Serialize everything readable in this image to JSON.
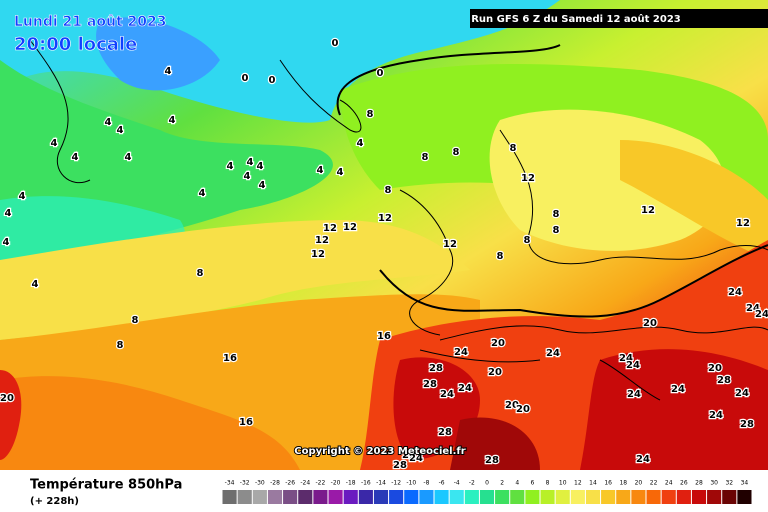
{
  "header": {
    "date": "Lundi 21 août 2023",
    "time": "20:00 locale",
    "run": "Run GFS 6 Z du Samedi 12 août 2023"
  },
  "copyright": "Copyright © 2023 Meteociel.fr",
  "footer": {
    "title": "Température 850hPa",
    "lead": "(+ 228h)"
  },
  "isotherm_labels": [
    0,
    4,
    0,
    0,
    0,
    8,
    4,
    4,
    4,
    4,
    4,
    4,
    4,
    8,
    8,
    8,
    4,
    4,
    4,
    4,
    4,
    4,
    4,
    4,
    4,
    4,
    8,
    12,
    12,
    12,
    12,
    12,
    12,
    12,
    8,
    8,
    8,
    8,
    12,
    12,
    4,
    4,
    8,
    8,
    8,
    16,
    16,
    20,
    16,
    24,
    20,
    20,
    24,
    20,
    24,
    24,
    24,
    24,
    24,
    20,
    28,
    24,
    24,
    24,
    28,
    28,
    24,
    24,
    20,
    20,
    24,
    28,
    28,
    28,
    28,
    24,
    24,
    28
  ],
  "scale": {
    "values": [
      -34,
      -32,
      -30,
      -28,
      -26,
      -24,
      -22,
      -20,
      -18,
      -16,
      -14,
      -12,
      -10,
      -8,
      -6,
      -4,
      -2,
      0,
      2,
      4,
      6,
      8,
      10,
      12,
      14,
      16,
      18,
      20,
      22,
      24,
      26,
      28,
      30,
      32,
      34
    ],
    "colors": [
      "#6e6e6e",
      "#8c8c8c",
      "#a8a8a8",
      "#9a7aa0",
      "#7a4e86",
      "#5c2c6c",
      "#7a1a8c",
      "#9a1aa8",
      "#6a1ac0",
      "#3a28a8",
      "#2a3ab8",
      "#1a4ae0",
      "#0a6aff",
      "#1a9aff",
      "#1ac8ff",
      "#3ae6f0",
      "#2af0c0",
      "#26e090",
      "#3ce060",
      "#60e040",
      "#90f020",
      "#b8f028",
      "#e0f040",
      "#f8f060",
      "#f8e048",
      "#f8c828",
      "#f8a818",
      "#f88810",
      "#f86808",
      "#f04010",
      "#e02010",
      "#c80a0a",
      "#a00808",
      "#6a0404",
      "#200000"
    ]
  }
}
